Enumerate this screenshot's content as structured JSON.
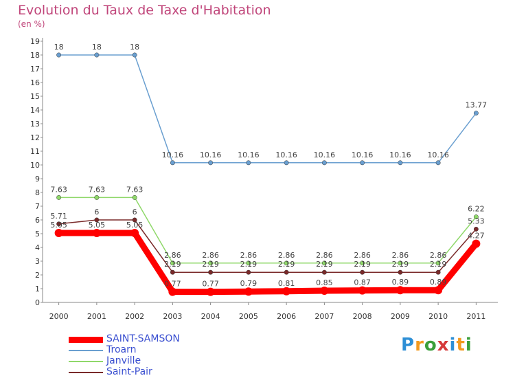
{
  "title": "Evolution du Taux de Taxe d'Habitation",
  "subtitle": "(en %)",
  "logo_text": "Proxiti",
  "chart_data": {
    "type": "line",
    "title": "Evolution du Taux de Taxe d'Habitation",
    "subtitle": "(en %)",
    "x": [
      "2000",
      "2001",
      "2002",
      "2003",
      "2004",
      "2005",
      "2006",
      "2007",
      "2008",
      "2009",
      "2010",
      "2011"
    ],
    "ylim": [
      0,
      19
    ],
    "yticks": [
      0,
      1,
      2,
      3,
      4,
      5,
      6,
      7,
      8,
      9,
      10,
      11,
      12,
      13,
      14,
      15,
      16,
      17,
      18,
      19
    ],
    "grid": false,
    "legend": "bottom-left",
    "series": [
      {
        "name": "SAINT-SAMSON",
        "color": "#ff0000",
        "values": [
          5.05,
          5.05,
          5.05,
          0.77,
          0.77,
          0.79,
          0.81,
          0.85,
          0.87,
          0.89,
          0.89,
          4.27
        ],
        "labels": [
          "5.05",
          "5.05",
          "5.05",
          "0.77",
          "0.77",
          "0.79",
          "0.81",
          "0.85",
          "0.87",
          "0.89",
          "0.89",
          "4.27"
        ]
      },
      {
        "name": "Troarn",
        "color": "#6a9fd0",
        "values": [
          18,
          18,
          18,
          10.16,
          10.16,
          10.16,
          10.16,
          10.16,
          10.16,
          10.16,
          10.16,
          13.77
        ],
        "labels": [
          "18",
          "18",
          "18",
          "10.16",
          "10.16",
          "10.16",
          "10.16",
          "10.16",
          "10.16",
          "10.16",
          "10.16",
          "13.77"
        ]
      },
      {
        "name": "Janville",
        "color": "#8fd86a",
        "values": [
          7.63,
          7.63,
          7.63,
          2.86,
          2.86,
          2.86,
          2.86,
          2.86,
          2.86,
          2.86,
          2.86,
          6.22
        ],
        "labels": [
          "7.63",
          "7.63",
          "7.63",
          "2.86",
          "2.86",
          "2.86",
          "2.86",
          "2.86",
          "2.86",
          "2.86",
          "2.86",
          "6.22"
        ]
      },
      {
        "name": "Saint-Pair",
        "color": "#7a2a2a",
        "values": [
          5.71,
          6,
          6,
          2.19,
          2.19,
          2.19,
          2.19,
          2.19,
          2.19,
          2.19,
          2.19,
          5.33
        ],
        "labels": [
          "5.71",
          "6",
          "6",
          "2.19",
          "2.19",
          "2.19",
          "2.19",
          "2.19",
          "2.19",
          "2.19",
          "2.19",
          "5.33"
        ]
      }
    ]
  }
}
